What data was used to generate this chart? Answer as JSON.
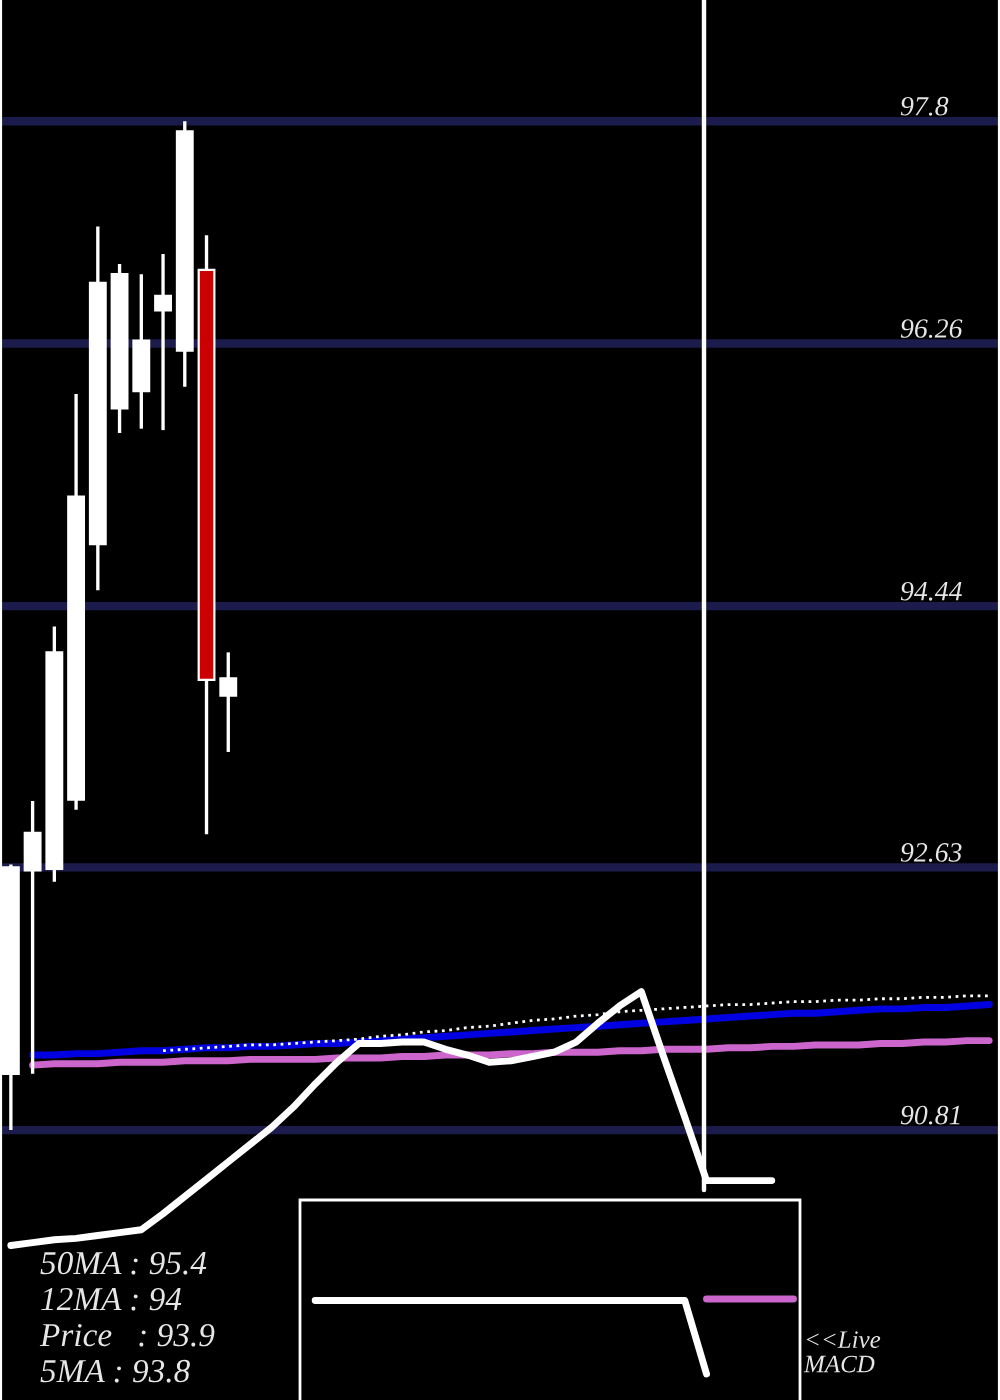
{
  "chart_data": {
    "type": "candlestick",
    "categories": [
      null,
      null,
      null,
      null,
      null,
      null,
      null,
      null,
      null,
      null,
      null,
      null,
      null,
      null,
      null,
      null,
      null,
      null,
      null,
      null,
      null,
      null,
      null,
      null,
      null,
      null,
      null,
      null,
      null,
      null,
      null,
      null,
      null,
      null,
      null,
      null,
      null,
      null,
      null,
      null,
      null,
      null,
      null,
      null,
      null,
      null
    ],
    "ohlc": [
      [
        91.2,
        92.65,
        90.81,
        92.63
      ],
      [
        92.61,
        93.09,
        91.2,
        92.87
      ],
      [
        92.62,
        94.3,
        92.53,
        94.12
      ],
      [
        93.1,
        95.91,
        93.03,
        95.2
      ],
      [
        94.87,
        97.07,
        94.55,
        96.68
      ],
      [
        95.81,
        96.81,
        95.64,
        96.74
      ],
      [
        95.93,
        96.74,
        95.67,
        96.28
      ],
      [
        96.49,
        96.88,
        95.66,
        96.59
      ],
      [
        96.21,
        97.8,
        95.96,
        97.73
      ],
      [
        96.77,
        97.01,
        92.86,
        93.93
      ],
      [
        93.82,
        94.12,
        93.43,
        93.94
      ],
      null,
      null,
      null,
      null,
      null,
      null,
      null,
      null,
      null,
      null,
      null,
      null,
      null,
      null,
      null,
      null,
      null,
      null,
      null,
      null,
      null,
      null,
      null,
      null,
      null,
      null,
      null,
      null,
      null,
      null,
      null,
      null,
      null,
      null,
      null
    ],
    "colors": [
      "#ffffff",
      "#ffffff",
      "#ffffff",
      "#ffffff",
      "#ffffff",
      "#ffffff",
      "#ffffff",
      "#ffffff",
      "#ffffff",
      "#cc0000",
      "#ffffff",
      null,
      null,
      null,
      null,
      null,
      null,
      null,
      null,
      null,
      null,
      null,
      null,
      null,
      null,
      null,
      null,
      null,
      null,
      null,
      null,
      null,
      null,
      null,
      null,
      null,
      null,
      null,
      null,
      null,
      null,
      null,
      null,
      null,
      null,
      null
    ],
    "series": [
      {
        "type": "line",
        "color": "#cc66cc",
        "values": [
          null,
          91.26,
          91.27,
          91.27,
          91.27,
          91.28,
          91.28,
          91.28,
          91.29,
          91.29,
          91.29,
          91.3,
          91.3,
          91.3,
          91.3,
          91.31,
          91.31,
          91.31,
          91.32,
          91.32,
          91.33,
          91.33,
          91.33,
          91.34,
          91.34,
          91.35,
          91.35,
          91.35,
          91.36,
          91.36,
          91.37,
          91.37,
          91.37,
          91.38,
          91.38,
          91.39,
          91.39,
          91.4,
          91.4,
          91.4,
          91.41,
          91.41,
          91.42,
          91.42,
          91.43,
          91.43
        ]
      },
      {
        "type": "line",
        "color": "#0000e0",
        "values": [
          null,
          91.33,
          91.33,
          91.34,
          91.34,
          91.35,
          91.36,
          91.36,
          91.37,
          91.38,
          91.38,
          91.39,
          91.39,
          91.4,
          91.41,
          91.41,
          91.42,
          91.43,
          91.44,
          91.45,
          91.46,
          91.47,
          91.48,
          91.49,
          91.5,
          91.51,
          91.52,
          91.53,
          91.54,
          91.55,
          91.56,
          91.57,
          91.58,
          91.59,
          91.6,
          91.61,
          91.62,
          91.62,
          91.63,
          91.64,
          91.65,
          91.65,
          91.66,
          91.66,
          91.67,
          91.68
        ]
      },
      {
        "type": "line",
        "color": "#ffffff",
        "line_style": "dotted",
        "values": [
          null,
          null,
          null,
          null,
          null,
          null,
          null,
          91.36,
          91.37,
          91.38,
          91.39,
          91.4,
          91.4,
          91.41,
          91.42,
          91.43,
          91.44,
          91.46,
          91.47,
          91.49,
          91.5,
          91.52,
          91.53,
          91.55,
          91.57,
          91.58,
          91.6,
          91.61,
          91.63,
          91.64,
          91.65,
          91.66,
          91.67,
          91.68,
          91.68,
          91.69,
          91.7,
          91.7,
          91.71,
          91.71,
          91.72,
          91.72,
          91.73,
          91.73,
          91.74,
          91.74
        ]
      },
      {
        "type": "line",
        "color": "#ffffff",
        "values": [
          90.01,
          90.03,
          90.05,
          90.06,
          90.08,
          90.1,
          90.12,
          90.23,
          90.35,
          90.47,
          90.59,
          90.71,
          90.83,
          90.97,
          91.13,
          91.28,
          91.41,
          91.41,
          91.42,
          91.42,
          91.37,
          91.33,
          91.28,
          91.29,
          91.32,
          91.35,
          91.42,
          91.55,
          91.67,
          91.77,
          91.33,
          90.9,
          90.46,
          90.46,
          90.46,
          90.46,
          null,
          null,
          null,
          null,
          null,
          null,
          null,
          null,
          null,
          null
        ]
      },
      {
        "type": "line",
        "color": "#ffffff",
        "values": [
          null,
          null,
          null,
          null,
          null,
          null,
          null,
          null,
          null,
          null,
          null,
          null,
          null,
          null,
          89.63,
          89.63,
          89.63,
          89.63,
          89.63,
          89.63,
          89.63,
          89.63,
          89.63,
          89.63,
          89.63,
          89.63,
          89.63,
          89.63,
          89.63,
          89.63,
          89.63,
          89.63,
          89.12,
          null,
          null,
          null,
          null,
          null,
          null,
          null,
          null,
          null,
          null,
          null,
          null,
          null
        ]
      },
      {
        "type": "line",
        "color": "#cc66cc",
        "values": [
          null,
          null,
          null,
          null,
          null,
          null,
          null,
          null,
          null,
          null,
          null,
          null,
          null,
          null,
          null,
          null,
          null,
          null,
          null,
          null,
          null,
          null,
          null,
          null,
          null,
          null,
          null,
          null,
          null,
          null,
          null,
          null,
          89.64,
          89.64,
          89.64,
          89.64,
          89.64,
          null,
          null,
          null,
          null,
          null,
          null,
          null,
          null,
          null
        ]
      }
    ],
    "ylim": [
      88.94,
      98.64
    ],
    "yticks": [
      90.81,
      92.63,
      94.44,
      96.26,
      97.8
    ],
    "grid": "y",
    "tick_labels": "y",
    "annotations": [
      "50MA : 95.4",
      "12MA : 94",
      "Price   : 93.9",
      "5MA : 93.8",
      "<<Live\nMACD"
    ]
  }
}
